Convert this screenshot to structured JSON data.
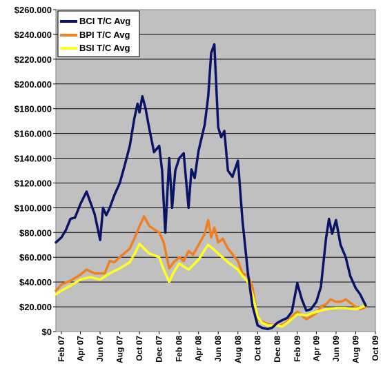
{
  "chart_data": {
    "type": "line",
    "title": "",
    "xlabel": "",
    "ylabel": "",
    "ylim": [
      0,
      260000
    ],
    "xlim": [
      "2007-01-15",
      "2009-10-01"
    ],
    "y_ticks": [
      0,
      20000,
      40000,
      60000,
      80000,
      100000,
      120000,
      140000,
      160000,
      180000,
      200000,
      220000,
      240000,
      260000
    ],
    "y_tick_labels": [
      "$0",
      "$20.000",
      "$40.000",
      "$60.000",
      "$80.000",
      "$100.000",
      "$120.000",
      "$140.000",
      "$160.000",
      "$180.000",
      "$200.000",
      "$220.000",
      "$240.000",
      "$260.000"
    ],
    "x_tick_dates": [
      "2007-02-01",
      "2007-04-01",
      "2007-06-01",
      "2007-08-01",
      "2007-10-01",
      "2007-12-01",
      "2008-02-01",
      "2008-04-01",
      "2008-06-01",
      "2008-08-01",
      "2008-10-01",
      "2008-12-01",
      "2009-02-01",
      "2009-04-01",
      "2009-06-01",
      "2009-08-01",
      "2009-10-01"
    ],
    "x_tick_labels": [
      "Feb 07",
      "Apr 07",
      "Jun 07",
      "Aug 07",
      "Oct 07",
      "Dec 07",
      "Feb 08",
      "Apr 08",
      "Jun 08",
      "Aug 08",
      "Oct 08",
      "Dec 08",
      "Feb 09",
      "Apr 09",
      "Jun 09",
      "Aug 09",
      "Oct 09"
    ],
    "grid": true,
    "legend_position": "top-left",
    "background_color": "#c0c0c0",
    "series": [
      {
        "name": "BCI T/C Avg",
        "color": "#0a1466",
        "x": [
          "2007-01-15",
          "2007-02-01",
          "2007-02-15",
          "2007-03-01",
          "2007-03-15",
          "2007-04-01",
          "2007-04-20",
          "2007-05-01",
          "2007-05-15",
          "2007-06-01",
          "2007-06-10",
          "2007-06-20",
          "2007-07-01",
          "2007-07-15",
          "2007-08-01",
          "2007-08-15",
          "2007-09-01",
          "2007-09-15",
          "2007-09-25",
          "2007-10-01",
          "2007-10-10",
          "2007-10-20",
          "2007-11-01",
          "2007-11-15",
          "2007-12-01",
          "2007-12-10",
          "2007-12-20",
          "2008-01-01",
          "2008-01-10",
          "2008-01-20",
          "2008-02-01",
          "2008-02-15",
          "2008-03-01",
          "2008-03-10",
          "2008-03-20",
          "2008-04-01",
          "2008-04-20",
          "2008-05-01",
          "2008-05-10",
          "2008-05-20",
          "2008-06-01",
          "2008-06-10",
          "2008-06-20",
          "2008-07-01",
          "2008-07-15",
          "2008-08-01",
          "2008-08-15",
          "2008-09-01",
          "2008-09-15",
          "2008-10-01",
          "2008-10-15",
          "2008-11-01",
          "2008-11-15",
          "2008-12-01",
          "2008-12-15",
          "2009-01-01",
          "2009-01-15",
          "2009-02-01",
          "2009-02-15",
          "2009-03-01",
          "2009-03-15",
          "2009-04-01",
          "2009-04-15",
          "2009-05-01",
          "2009-05-10",
          "2009-05-20",
          "2009-06-01",
          "2009-06-15",
          "2009-07-01",
          "2009-07-15",
          "2009-08-01",
          "2009-08-15",
          "2009-09-01"
        ],
        "values": [
          72000,
          76000,
          82000,
          91000,
          92000,
          103000,
          113000,
          105000,
          95000,
          74000,
          100000,
          94000,
          100000,
          110000,
          120000,
          133000,
          150000,
          172000,
          184000,
          177000,
          190000,
          180000,
          163000,
          145000,
          150000,
          130000,
          80000,
          140000,
          100000,
          130000,
          140000,
          144000,
          100000,
          131000,
          124000,
          146000,
          167000,
          190000,
          225000,
          232000,
          165000,
          157000,
          162000,
          130000,
          125000,
          138000,
          90000,
          47000,
          21000,
          5000,
          3000,
          2000,
          3000,
          7000,
          9000,
          11000,
          16000,
          39000,
          26000,
          17000,
          18000,
          24000,
          36000,
          75000,
          91000,
          79000,
          90000,
          70000,
          60000,
          45000,
          35000,
          30000,
          21000
        ]
      },
      {
        "name": "BPI T/C Avg",
        "color": "#f07f22",
        "x": [
          "2007-01-15",
          "2007-02-01",
          "2007-03-01",
          "2007-04-01",
          "2007-04-20",
          "2007-05-15",
          "2007-06-15",
          "2007-07-01",
          "2007-07-15",
          "2007-08-01",
          "2007-09-01",
          "2007-09-20",
          "2007-10-01",
          "2007-10-15",
          "2007-11-01",
          "2007-12-01",
          "2007-12-15",
          "2008-01-01",
          "2008-01-15",
          "2008-02-01",
          "2008-02-15",
          "2008-03-01",
          "2008-03-15",
          "2008-04-01",
          "2008-04-20",
          "2008-05-01",
          "2008-05-10",
          "2008-05-20",
          "2008-06-01",
          "2008-06-15",
          "2008-07-01",
          "2008-08-01",
          "2008-08-15",
          "2008-09-01",
          "2008-09-15",
          "2008-10-01",
          "2008-10-15",
          "2008-11-01",
          "2008-12-01",
          "2008-12-15",
          "2009-01-01",
          "2009-01-15",
          "2009-02-01",
          "2009-02-15",
          "2009-03-01",
          "2009-03-15",
          "2009-04-01",
          "2009-04-15",
          "2009-05-01",
          "2009-05-15",
          "2009-06-01",
          "2009-06-15",
          "2009-07-01",
          "2009-08-01",
          "2009-08-15",
          "2009-09-01"
        ],
        "values": [
          33000,
          38000,
          41000,
          46000,
          50000,
          47000,
          47000,
          57000,
          56000,
          60000,
          67000,
          78000,
          85000,
          93000,
          85000,
          80000,
          72000,
          51000,
          56000,
          60000,
          57000,
          65000,
          62000,
          70000,
          79000,
          90000,
          76000,
          84000,
          72000,
          75000,
          67000,
          57000,
          47000,
          45000,
          36000,
          10000,
          8000,
          6000,
          5000,
          5000,
          8000,
          12000,
          16000,
          13000,
          10000,
          12000,
          15000,
          20000,
          22000,
          26000,
          24000,
          24000,
          26000,
          20000,
          18000,
          20000
        ]
      },
      {
        "name": "BSI T/C Avg",
        "color": "#ffff22",
        "x": [
          "2007-01-15",
          "2007-02-01",
          "2007-03-01",
          "2007-04-01",
          "2007-05-01",
          "2007-06-01",
          "2007-07-01",
          "2007-08-01",
          "2007-09-01",
          "2007-09-20",
          "2007-10-01",
          "2007-10-15",
          "2007-11-01",
          "2007-12-01",
          "2007-12-15",
          "2008-01-01",
          "2008-01-15",
          "2008-02-01",
          "2008-03-01",
          "2008-04-01",
          "2008-04-20",
          "2008-05-01",
          "2008-05-20",
          "2008-06-01",
          "2008-07-01",
          "2008-08-01",
          "2008-08-15",
          "2008-09-01",
          "2008-09-15",
          "2008-10-01",
          "2008-10-15",
          "2008-11-01",
          "2008-12-01",
          "2008-12-15",
          "2009-01-01",
          "2009-02-01",
          "2009-03-01",
          "2009-04-01",
          "2009-05-01",
          "2009-06-01",
          "2009-07-01",
          "2009-08-01",
          "2009-09-01"
        ],
        "values": [
          30000,
          33000,
          37000,
          42000,
          44000,
          42000,
          47000,
          51000,
          56000,
          65000,
          71000,
          67000,
          63000,
          60000,
          50000,
          40000,
          48000,
          55000,
          50000,
          58000,
          66000,
          70000,
          66000,
          63000,
          56000,
          50000,
          45000,
          40000,
          30000,
          12000,
          7000,
          5000,
          5000,
          4000,
          7000,
          14000,
          13000,
          16000,
          18000,
          19000,
          19000,
          18000,
          21000
        ]
      }
    ]
  }
}
